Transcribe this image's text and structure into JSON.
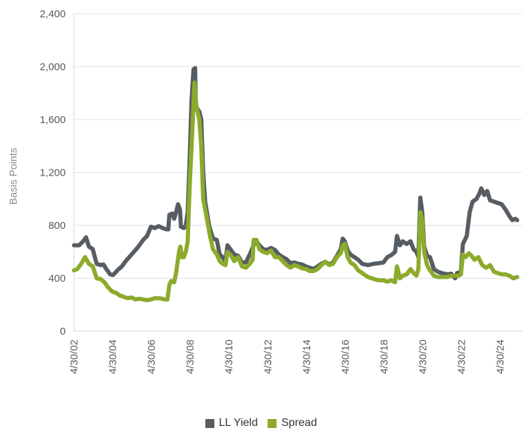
{
  "chart_data": {
    "type": "line",
    "ylabel": "Basis Points",
    "xlabel": "",
    "ylim": [
      0,
      2400
    ],
    "y_ticks": [
      "0",
      "400",
      "800",
      "1,200",
      "1,600",
      "2,000",
      "2,400"
    ],
    "y_tick_values": [
      0,
      400,
      800,
      1200,
      1600,
      2000,
      2400
    ],
    "x_range": [
      2002.33,
      2025.2
    ],
    "x_ticks": [
      "4/30/02",
      "4/30/04",
      "4/30/06",
      "4/30/08",
      "4/30/10",
      "4/30/12",
      "4/30/14",
      "4/30/16",
      "4/30/18",
      "4/30/20",
      "4/30/22",
      "4/30/24"
    ],
    "x_tick_values": [
      2002.33,
      2004.33,
      2006.33,
      2008.33,
      2010.33,
      2012.33,
      2014.33,
      2016.33,
      2018.33,
      2020.33,
      2022.33,
      2024.33
    ],
    "grid": "horizontal",
    "legend_position": "bottom",
    "series": [
      {
        "name": "LL Yield",
        "color": "#565d63",
        "points": [
          [
            2002.33,
            650
          ],
          [
            2002.6,
            650
          ],
          [
            2002.8,
            680
          ],
          [
            2002.95,
            710
          ],
          [
            2003.1,
            640
          ],
          [
            2003.3,
            620
          ],
          [
            2003.5,
            510
          ],
          [
            2003.7,
            500
          ],
          [
            2003.85,
            505
          ],
          [
            2004.0,
            470
          ],
          [
            2004.2,
            430
          ],
          [
            2004.35,
            425
          ],
          [
            2004.6,
            465
          ],
          [
            2004.8,
            490
          ],
          [
            2005.0,
            530
          ],
          [
            2005.3,
            580
          ],
          [
            2005.6,
            630
          ],
          [
            2005.9,
            690
          ],
          [
            2006.1,
            720
          ],
          [
            2006.3,
            790
          ],
          [
            2006.5,
            780
          ],
          [
            2006.7,
            795
          ],
          [
            2006.9,
            780
          ],
          [
            2007.1,
            770
          ],
          [
            2007.2,
            770
          ],
          [
            2007.25,
            880
          ],
          [
            2007.4,
            890
          ],
          [
            2007.5,
            850
          ],
          [
            2007.6,
            900
          ],
          [
            2007.7,
            960
          ],
          [
            2007.8,
            920
          ],
          [
            2007.85,
            790
          ],
          [
            2008.0,
            780
          ],
          [
            2008.1,
            800
          ],
          [
            2008.2,
            900
          ],
          [
            2008.3,
            1300
          ],
          [
            2008.4,
            1750
          ],
          [
            2008.5,
            1980
          ],
          [
            2008.58,
            1990
          ],
          [
            2008.62,
            1700
          ],
          [
            2008.8,
            1660
          ],
          [
            2008.9,
            1600
          ],
          [
            2009.0,
            1200
          ],
          [
            2009.1,
            980
          ],
          [
            2009.3,
            800
          ],
          [
            2009.5,
            700
          ],
          [
            2009.7,
            690
          ],
          [
            2009.85,
            580
          ],
          [
            2010.0,
            560
          ],
          [
            2010.15,
            530
          ],
          [
            2010.25,
            650
          ],
          [
            2010.4,
            620
          ],
          [
            2010.6,
            580
          ],
          [
            2010.8,
            570
          ],
          [
            2011.0,
            520
          ],
          [
            2011.2,
            520
          ],
          [
            2011.4,
            580
          ],
          [
            2011.6,
            650
          ],
          [
            2011.75,
            680
          ],
          [
            2011.9,
            650
          ],
          [
            2012.1,
            620
          ],
          [
            2012.3,
            615
          ],
          [
            2012.5,
            630
          ],
          [
            2012.7,
            615
          ],
          [
            2012.9,
            580
          ],
          [
            2013.1,
            560
          ],
          [
            2013.3,
            545
          ],
          [
            2013.5,
            515
          ],
          [
            2013.7,
            520
          ],
          [
            2013.9,
            510
          ],
          [
            2014.1,
            505
          ],
          [
            2014.3,
            490
          ],
          [
            2014.5,
            480
          ],
          [
            2014.7,
            470
          ],
          [
            2014.9,
            490
          ],
          [
            2015.1,
            510
          ],
          [
            2015.3,
            525
          ],
          [
            2015.5,
            505
          ],
          [
            2015.7,
            520
          ],
          [
            2015.9,
            570
          ],
          [
            2016.1,
            620
          ],
          [
            2016.2,
            700
          ],
          [
            2016.3,
            680
          ],
          [
            2016.45,
            610
          ],
          [
            2016.6,
            580
          ],
          [
            2016.8,
            560
          ],
          [
            2017.0,
            540
          ],
          [
            2017.2,
            510
          ],
          [
            2017.5,
            500
          ],
          [
            2017.8,
            510
          ],
          [
            2018.1,
            515
          ],
          [
            2018.3,
            520
          ],
          [
            2018.5,
            560
          ],
          [
            2018.7,
            575
          ],
          [
            2018.9,
            600
          ],
          [
            2019.0,
            720
          ],
          [
            2019.15,
            650
          ],
          [
            2019.3,
            680
          ],
          [
            2019.5,
            660
          ],
          [
            2019.7,
            680
          ],
          [
            2019.85,
            620
          ],
          [
            2020.0,
            600
          ],
          [
            2020.1,
            560
          ],
          [
            2020.2,
            1010
          ],
          [
            2020.3,
            900
          ],
          [
            2020.4,
            640
          ],
          [
            2020.55,
            570
          ],
          [
            2020.7,
            560
          ],
          [
            2020.9,
            470
          ],
          [
            2021.1,
            450
          ],
          [
            2021.3,
            440
          ],
          [
            2021.6,
            430
          ],
          [
            2021.8,
            435
          ],
          [
            2022.0,
            400
          ],
          [
            2022.1,
            440
          ],
          [
            2022.3,
            450
          ],
          [
            2022.4,
            660
          ],
          [
            2022.6,
            720
          ],
          [
            2022.75,
            900
          ],
          [
            2022.9,
            980
          ],
          [
            2023.1,
            1000
          ],
          [
            2023.25,
            1040
          ],
          [
            2023.35,
            1080
          ],
          [
            2023.5,
            1030
          ],
          [
            2023.65,
            1060
          ],
          [
            2023.8,
            990
          ],
          [
            2024.0,
            980
          ],
          [
            2024.2,
            970
          ],
          [
            2024.4,
            960
          ],
          [
            2024.6,
            920
          ],
          [
            2024.8,
            870
          ],
          [
            2024.95,
            840
          ],
          [
            2025.1,
            850
          ],
          [
            2025.2,
            840
          ]
        ]
      },
      {
        "name": "Spread",
        "color": "#8cab2c",
        "points": [
          [
            2002.33,
            460
          ],
          [
            2002.5,
            470
          ],
          [
            2002.7,
            510
          ],
          [
            2002.9,
            560
          ],
          [
            2003.1,
            510
          ],
          [
            2003.3,
            490
          ],
          [
            2003.5,
            400
          ],
          [
            2003.7,
            395
          ],
          [
            2003.9,
            370
          ],
          [
            2004.1,
            330
          ],
          [
            2004.3,
            300
          ],
          [
            2004.5,
            290
          ],
          [
            2004.7,
            270
          ],
          [
            2004.9,
            260
          ],
          [
            2005.1,
            250
          ],
          [
            2005.3,
            255
          ],
          [
            2005.5,
            240
          ],
          [
            2005.7,
            245
          ],
          [
            2005.9,
            240
          ],
          [
            2006.1,
            235
          ],
          [
            2006.3,
            240
          ],
          [
            2006.5,
            250
          ],
          [
            2006.7,
            250
          ],
          [
            2006.9,
            245
          ],
          [
            2007.0,
            240
          ],
          [
            2007.15,
            240
          ],
          [
            2007.25,
            350
          ],
          [
            2007.35,
            380
          ],
          [
            2007.5,
            370
          ],
          [
            2007.6,
            440
          ],
          [
            2007.75,
            600
          ],
          [
            2007.82,
            640
          ],
          [
            2007.9,
            560
          ],
          [
            2008.0,
            560
          ],
          [
            2008.1,
            600
          ],
          [
            2008.2,
            680
          ],
          [
            2008.3,
            1100
          ],
          [
            2008.4,
            1400
          ],
          [
            2008.55,
            1880
          ],
          [
            2008.65,
            1700
          ],
          [
            2008.8,
            1600
          ],
          [
            2008.9,
            1400
          ],
          [
            2009.0,
            1000
          ],
          [
            2009.2,
            840
          ],
          [
            2009.35,
            720
          ],
          [
            2009.5,
            620
          ],
          [
            2009.7,
            580
          ],
          [
            2009.85,
            530
          ],
          [
            2010.0,
            510
          ],
          [
            2010.15,
            500
          ],
          [
            2010.25,
            600
          ],
          [
            2010.4,
            580
          ],
          [
            2010.6,
            530
          ],
          [
            2010.8,
            560
          ],
          [
            2011.0,
            490
          ],
          [
            2011.2,
            480
          ],
          [
            2011.4,
            510
          ],
          [
            2011.55,
            540
          ],
          [
            2011.6,
            690
          ],
          [
            2011.75,
            690
          ],
          [
            2011.9,
            620
          ],
          [
            2012.1,
            600
          ],
          [
            2012.3,
            590
          ],
          [
            2012.5,
            610
          ],
          [
            2012.7,
            560
          ],
          [
            2012.9,
            560
          ],
          [
            2013.1,
            530
          ],
          [
            2013.3,
            500
          ],
          [
            2013.5,
            480
          ],
          [
            2013.7,
            500
          ],
          [
            2013.9,
            490
          ],
          [
            2014.1,
            475
          ],
          [
            2014.3,
            470
          ],
          [
            2014.5,
            455
          ],
          [
            2014.7,
            455
          ],
          [
            2014.9,
            470
          ],
          [
            2015.1,
            500
          ],
          [
            2015.3,
            525
          ],
          [
            2015.5,
            500
          ],
          [
            2015.7,
            510
          ],
          [
            2015.9,
            560
          ],
          [
            2016.1,
            590
          ],
          [
            2016.2,
            650
          ],
          [
            2016.3,
            660
          ],
          [
            2016.45,
            560
          ],
          [
            2016.6,
            520
          ],
          [
            2016.8,
            500
          ],
          [
            2017.0,
            460
          ],
          [
            2017.2,
            440
          ],
          [
            2017.5,
            410
          ],
          [
            2017.7,
            400
          ],
          [
            2017.9,
            390
          ],
          [
            2018.1,
            385
          ],
          [
            2018.3,
            385
          ],
          [
            2018.5,
            375
          ],
          [
            2018.7,
            385
          ],
          [
            2018.9,
            370
          ],
          [
            2019.0,
            490
          ],
          [
            2019.15,
            400
          ],
          [
            2019.3,
            420
          ],
          [
            2019.5,
            430
          ],
          [
            2019.7,
            470
          ],
          [
            2019.85,
            440
          ],
          [
            2020.0,
            420
          ],
          [
            2020.1,
            470
          ],
          [
            2020.2,
            900
          ],
          [
            2020.3,
            840
          ],
          [
            2020.4,
            600
          ],
          [
            2020.55,
            500
          ],
          [
            2020.7,
            460
          ],
          [
            2020.9,
            420
          ],
          [
            2021.1,
            410
          ],
          [
            2021.3,
            410
          ],
          [
            2021.6,
            410
          ],
          [
            2021.8,
            420
          ],
          [
            2022.0,
            420
          ],
          [
            2022.2,
            420
          ],
          [
            2022.3,
            430
          ],
          [
            2022.4,
            580
          ],
          [
            2022.55,
            560
          ],
          [
            2022.7,
            590
          ],
          [
            2022.85,
            570
          ],
          [
            2023.0,
            540
          ],
          [
            2023.2,
            560
          ],
          [
            2023.4,
            500
          ],
          [
            2023.6,
            480
          ],
          [
            2023.8,
            500
          ],
          [
            2024.0,
            450
          ],
          [
            2024.2,
            440
          ],
          [
            2024.4,
            430
          ],
          [
            2024.6,
            430
          ],
          [
            2024.8,
            420
          ],
          [
            2025.0,
            400
          ],
          [
            2025.2,
            410
          ]
        ]
      }
    ]
  }
}
